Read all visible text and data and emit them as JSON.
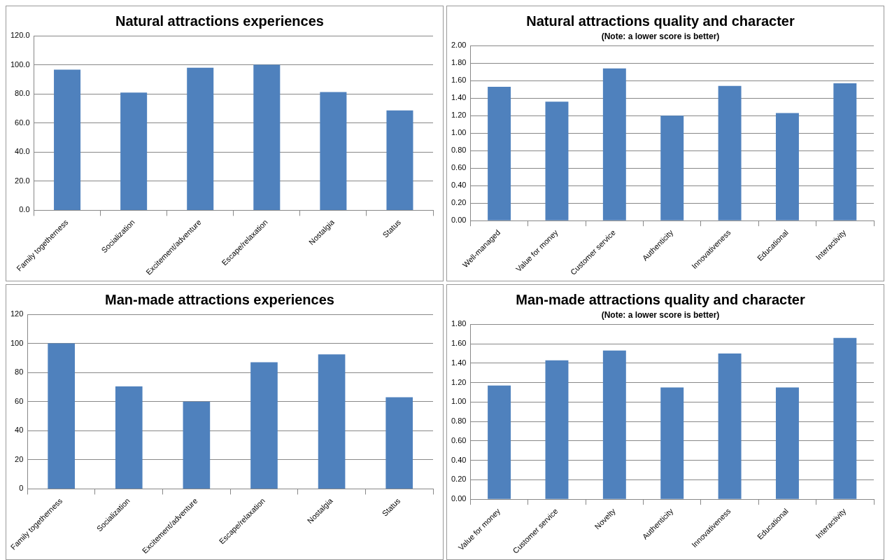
{
  "chart_data": [
    {
      "type": "bar",
      "title": "Natural attractions experiences",
      "categories": [
        "Family togetherness",
        "Socialization",
        "Excitement/adventure",
        "Escape/relaxation",
        "Nostalgia",
        "Status"
      ],
      "values": [
        96.7,
        80.9,
        98.0,
        100.0,
        81.3,
        68.6
      ],
      "color": "#4f81bd",
      "ylim": [
        0,
        120
      ],
      "yticks": [
        {
          "value": 0,
          "label": "0.0"
        },
        {
          "value": 20,
          "label": "20.0"
        },
        {
          "value": 40,
          "label": "40.0"
        },
        {
          "value": 60,
          "label": "60.0"
        },
        {
          "value": 80,
          "label": "80.0"
        },
        {
          "value": 100,
          "label": "100.0"
        },
        {
          "value": 120,
          "label": "120.0"
        }
      ],
      "grid": "y"
    },
    {
      "type": "bar",
      "title": "Natural attractions quality and character",
      "subtitle": "(Note: a lower score is better)",
      "categories": [
        "Well-managed",
        "Value for money",
        "Customer service",
        "Authenticity",
        "Innovativeness",
        "Educational",
        "Interactivity"
      ],
      "values": [
        1.53,
        1.36,
        1.74,
        1.2,
        1.54,
        1.23,
        1.57
      ],
      "color": "#4f81bd",
      "ylim": [
        0,
        2
      ],
      "yticks": [
        {
          "value": 0,
          "label": "0.00"
        },
        {
          "value": 0.2,
          "label": "0.20"
        },
        {
          "value": 0.4,
          "label": "0.40"
        },
        {
          "value": 0.6,
          "label": "0.60"
        },
        {
          "value": 0.8,
          "label": "0.80"
        },
        {
          "value": 1,
          "label": "1.00"
        },
        {
          "value": 1.2,
          "label": "1.20"
        },
        {
          "value": 1.4,
          "label": "1.40"
        },
        {
          "value": 1.6,
          "label": "1.60"
        },
        {
          "value": 1.8,
          "label": "1.80"
        },
        {
          "value": 2,
          "label": "2.00"
        }
      ],
      "grid": "y"
    },
    {
      "type": "bar",
      "title": "Man-made attractions experiences",
      "categories": [
        "Family togetherness",
        "Socialization",
        "Excitement/adventure",
        "Escape/relaxation",
        "Nostalgia",
        "Status"
      ],
      "values": [
        100,
        70.5,
        60,
        87,
        92.5,
        63
      ],
      "color": "#4f81bd",
      "ylim": [
        0,
        120
      ],
      "yticks": [
        0,
        20,
        40,
        60,
        80,
        100,
        120
      ],
      "grid": "y"
    },
    {
      "type": "bar",
      "title": "Man-made attractions quality and character",
      "subtitle": "(Note: a lower score is better)",
      "categories": [
        "Value for money",
        "Customer service",
        "Novelty",
        "Authenticity",
        "Innovativeness",
        "Educational",
        "Interactivity"
      ],
      "values": [
        1.17,
        1.43,
        1.53,
        1.15,
        1.5,
        1.15,
        1.66
      ],
      "color": "#4f81bd",
      "ylim": [
        0,
        1.8
      ],
      "yticks": [
        {
          "value": 0,
          "label": "0.00"
        },
        {
          "value": 0.2,
          "label": "0.20"
        },
        {
          "value": 0.4,
          "label": "0.40"
        },
        {
          "value": 0.6,
          "label": "0.60"
        },
        {
          "value": 0.8,
          "label": "0.80"
        },
        {
          "value": 1,
          "label": "1.00"
        },
        {
          "value": 1.2,
          "label": "1.20"
        },
        {
          "value": 1.4,
          "label": "1.40"
        },
        {
          "value": 1.6,
          "label": "1.60"
        },
        {
          "value": 1.8,
          "label": "1.80"
        }
      ],
      "grid": "y"
    }
  ]
}
